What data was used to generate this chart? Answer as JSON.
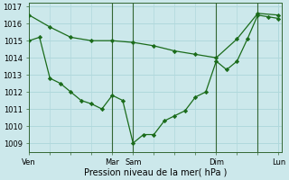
{
  "bg_color": "#cce8eb",
  "grid_color": "#b0d8dc",
  "line_color": "#1a6b1a",
  "marker_color": "#1a6b1a",
  "xlabel": "Pression niveau de la mer( hPa )",
  "ylim": [
    1008.5,
    1017.2
  ],
  "yticks": [
    1009,
    1010,
    1011,
    1012,
    1013,
    1014,
    1015,
    1016,
    1017
  ],
  "xlim": [
    0,
    73
  ],
  "xtick_labels": [
    "Ven",
    "Mar",
    "Sam",
    "Dim",
    "Lun"
  ],
  "xtick_positions": [
    0,
    24,
    30,
    54,
    72
  ],
  "series1_x": [
    0,
    6,
    12,
    18,
    24,
    30,
    36,
    42,
    48,
    54,
    60,
    66,
    72
  ],
  "series1_y": [
    1016.5,
    1015.8,
    1015.2,
    1015.0,
    1015.0,
    1014.9,
    1014.7,
    1014.4,
    1014.2,
    1014.0,
    1015.1,
    1016.6,
    1016.5
  ],
  "series2_x": [
    0,
    3,
    6,
    9,
    12,
    15,
    18,
    21,
    24,
    27,
    30,
    33,
    36,
    39,
    42,
    45,
    48,
    51,
    54,
    57,
    60,
    63,
    66,
    69,
    72
  ],
  "series2_y": [
    1015.0,
    1015.2,
    1012.8,
    1012.5,
    1012.0,
    1011.5,
    1011.3,
    1011.0,
    1011.8,
    1011.5,
    1009.0,
    1009.5,
    1009.5,
    1010.3,
    1010.6,
    1010.9,
    1011.7,
    1012.0,
    1013.8,
    1013.3,
    1013.8,
    1015.1,
    1016.5,
    1016.4,
    1016.3
  ],
  "vlines": [
    24,
    30,
    54,
    66
  ],
  "vline_color": "#336633",
  "tick_fontsize": 6,
  "xlabel_fontsize": 7
}
